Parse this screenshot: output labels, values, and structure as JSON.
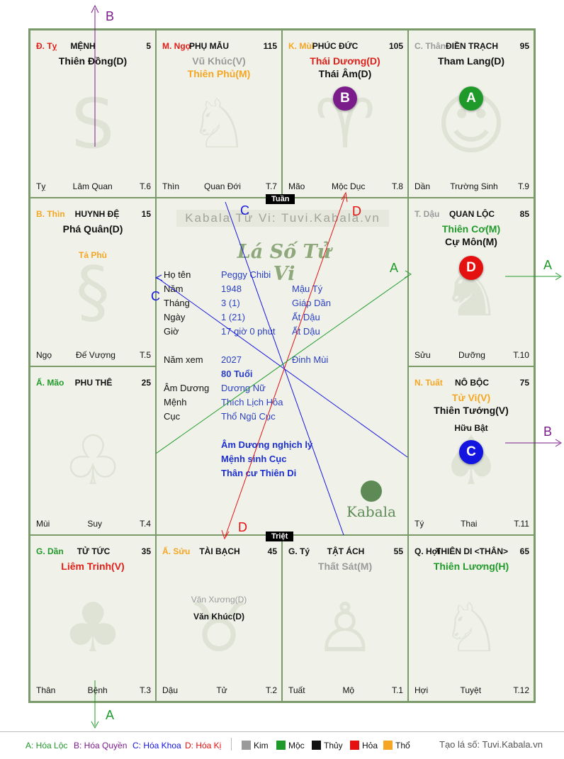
{
  "cells": [
    {
      "branch": "Đ. Tỵ",
      "branch_color": "#e0201a",
      "house": "MỆNH",
      "num": "5",
      "stars": [
        {
          "t": "Thiên Đồng(D)",
          "c": "#111"
        }
      ],
      "minor": [],
      "foot_l": "Tỵ",
      "foot_m": "Lâm Quan",
      "foot_r": "T.6",
      "ghost": "S"
    },
    {
      "branch": "M. Ngọ",
      "branch_color": "#e0201a",
      "house": "PHỤ MẪU",
      "num": "115",
      "stars": [
        {
          "t": "Vũ Khúc(V)",
          "c": "#9a9a9a"
        },
        {
          "t": "Thiên Phủ(M)",
          "c": "#f5a623"
        }
      ],
      "minor": [],
      "foot_l": "Thìn",
      "foot_m": "Quan Đới",
      "foot_r": "T.7",
      "ghost": "♘"
    },
    {
      "branch": "K. Mùi",
      "branch_color": "#f5a623",
      "house": "PHÚC ĐỨC",
      "num": "105",
      "stars": [
        {
          "t": "Thái Dương(D)",
          "c": "#e0201a"
        },
        {
          "t": "Thái Âm(D)",
          "c": "#111"
        }
      ],
      "minor": [],
      "foot_l": "Mão",
      "foot_m": "Mộc Dục",
      "foot_r": "T.8",
      "ghost": "♈"
    },
    {
      "branch": "C. Thân",
      "branch_color": "#9a9a9a",
      "house": "ĐIỀN TRẠCH",
      "num": "95",
      "stars": [
        {
          "t": "Tham Lang(D)",
          "c": "#111"
        }
      ],
      "minor": [],
      "foot_l": "Dần",
      "foot_m": "Trường Sinh",
      "foot_r": "T.9",
      "ghost": "☺"
    },
    {
      "branch": "B. Thìn",
      "branch_color": "#f5a623",
      "house": "HUYNH ĐỆ",
      "num": "15",
      "stars": [
        {
          "t": "Phá Quân(D)",
          "c": "#111"
        }
      ],
      "minor": [
        {
          "t": "Tả Phù",
          "c": "#f5a623"
        }
      ],
      "foot_l": "Ngọ",
      "foot_m": "Đế Vượng",
      "foot_r": "T.5",
      "ghost": "§"
    },
    {
      "branch": "T. Dậu",
      "branch_color": "#9a9a9a",
      "house": "QUAN LỘC",
      "num": "85",
      "stars": [
        {
          "t": "Thiên Cơ(M)",
          "c": "#229a2a"
        },
        {
          "t": "Cự Môn(M)",
          "c": "#111"
        }
      ],
      "minor": [],
      "foot_l": "Sửu",
      "foot_m": "Dưỡng",
      "foot_r": "T.10",
      "ghost": "♞"
    },
    {
      "branch": "Ấ. Mão",
      "branch_color": "#229a2a",
      "house": "PHU THÊ",
      "num": "25",
      "stars": [],
      "minor": [],
      "foot_l": "Mùi",
      "foot_m": "Suy",
      "foot_r": "T.4",
      "ghost": "♧"
    },
    {
      "branch": "N. Tuất",
      "branch_color": "#f5a623",
      "house": "NÔ BỘC",
      "num": "75",
      "stars": [
        {
          "t": "Tử Vi(V)",
          "c": "#f5a623"
        },
        {
          "t": "Thiên Tướng(V)",
          "c": "#111"
        }
      ],
      "minor": [
        {
          "t": "Hữu Bật",
          "c": "#111"
        }
      ],
      "foot_l": "Tý",
      "foot_m": "Thai",
      "foot_r": "T.11",
      "ghost": "♠"
    },
    {
      "branch": "G. Dần",
      "branch_color": "#229a2a",
      "house": "TỬ TỨC",
      "num": "35",
      "stars": [
        {
          "t": "Liêm Trinh(V)",
          "c": "#e0201a"
        }
      ],
      "minor": [],
      "foot_l": "Thân",
      "foot_m": "Bệnh",
      "foot_r": "T.3",
      "ghost": "♣"
    },
    {
      "branch": "Ấ. Sửu",
      "branch_color": "#f5a623",
      "house": "TÀI BẠCH",
      "num": "45",
      "stars": [],
      "minor": [
        {
          "t": "Văn Xương(D)",
          "c": "#9a9a9a"
        },
        {
          "t": "Văn Khúc(D)",
          "c": "#111"
        }
      ],
      "foot_l": "Dậu",
      "foot_m": "Tử",
      "foot_r": "T.2",
      "ghost": "♉"
    },
    {
      "branch": "G. Tý",
      "branch_color": "#111",
      "house": "TẬT ÁCH",
      "num": "55",
      "stars": [
        {
          "t": "Thất Sát(M)",
          "c": "#9a9a9a"
        }
      ],
      "minor": [],
      "foot_l": "Tuất",
      "foot_m": "Mộ",
      "foot_r": "T.1",
      "ghost": "♙"
    },
    {
      "branch": "Q. Hợi",
      "branch_color": "#111",
      "house": "THIÊN DI <THÂN>",
      "num": "65",
      "stars": [
        {
          "t": "Thiên Lương(H)",
          "c": "#229a2a"
        }
      ],
      "minor": [],
      "foot_l": "Hợi",
      "foot_m": "Tuyệt",
      "foot_r": "T.12",
      "ghost": "♘"
    }
  ],
  "center": {
    "site": "Kabala Tử Vi: Tuvi.Kabala.vn",
    "brand": "Lá Số Tử Vi",
    "rows": [
      {
        "label": "Họ tên",
        "v1": "Peggy Chibi",
        "v2": ""
      },
      {
        "label": "Năm",
        "v1": "1948",
        "v2": "Mậu Tý"
      },
      {
        "label": "Tháng",
        "v1": "3  (1)",
        "v2": "Giáp Dần"
      },
      {
        "label": "Ngày",
        "v1": "1  (21)",
        "v2": "Ất Dậu"
      },
      {
        "label": "Giờ",
        "v1": "17 giờ 0 phút",
        "v2": "Ất Dậu"
      },
      {
        "label": "Năm xem",
        "v1": "2027",
        "v2": "Đinh Mùi"
      },
      {
        "label": "",
        "v1": "80 Tuổi",
        "v2": ""
      },
      {
        "label": "Âm Dương",
        "v1": "Dương Nữ",
        "v2": ""
      },
      {
        "label": "Mệnh",
        "v1": "Thích Lịch Hỏa",
        "v2": ""
      },
      {
        "label": "Cục",
        "v1": "Thổ Ngũ Cục",
        "v2": ""
      }
    ],
    "notes": [
      "Âm Dương nghịch lý",
      "Mệnh sinh Cục",
      "Thân cư Thiên Di"
    ],
    "logo_text": "Kabala"
  },
  "tuan_label": "Tuần",
  "triet_label": "Triệt",
  "badges": [
    {
      "letter": "B",
      "color": "#7a1c8a"
    },
    {
      "letter": "A",
      "color": "#1f9a2a"
    },
    {
      "letter": "D",
      "color": "#e51010"
    },
    {
      "letter": "C",
      "color": "#1414e0"
    }
  ],
  "markers": {
    "a": "A",
    "b": "B",
    "c": "C",
    "d": "D"
  },
  "legend": {
    "a": "A: Hóa Lộc",
    "b": "B: Hóa Quyền",
    "c": "C: Hóa Khoa",
    "d": "D: Hóa Kị",
    "kim": "Kim",
    "moc": "Mộc",
    "thuy": "Thủy",
    "hoa": "Hỏa",
    "tho": "Thổ",
    "credit": "Tạo lá số: Tuvi.Kabala.vn"
  },
  "colors": {
    "kim": "#9a9a9a",
    "moc": "#1f9a2a",
    "thuy": "#111111",
    "hoa": "#e51010",
    "tho": "#f5a623",
    "a": "#1f9a2a",
    "b": "#7a1c8a",
    "c": "#1414e0",
    "d": "#e51010"
  }
}
